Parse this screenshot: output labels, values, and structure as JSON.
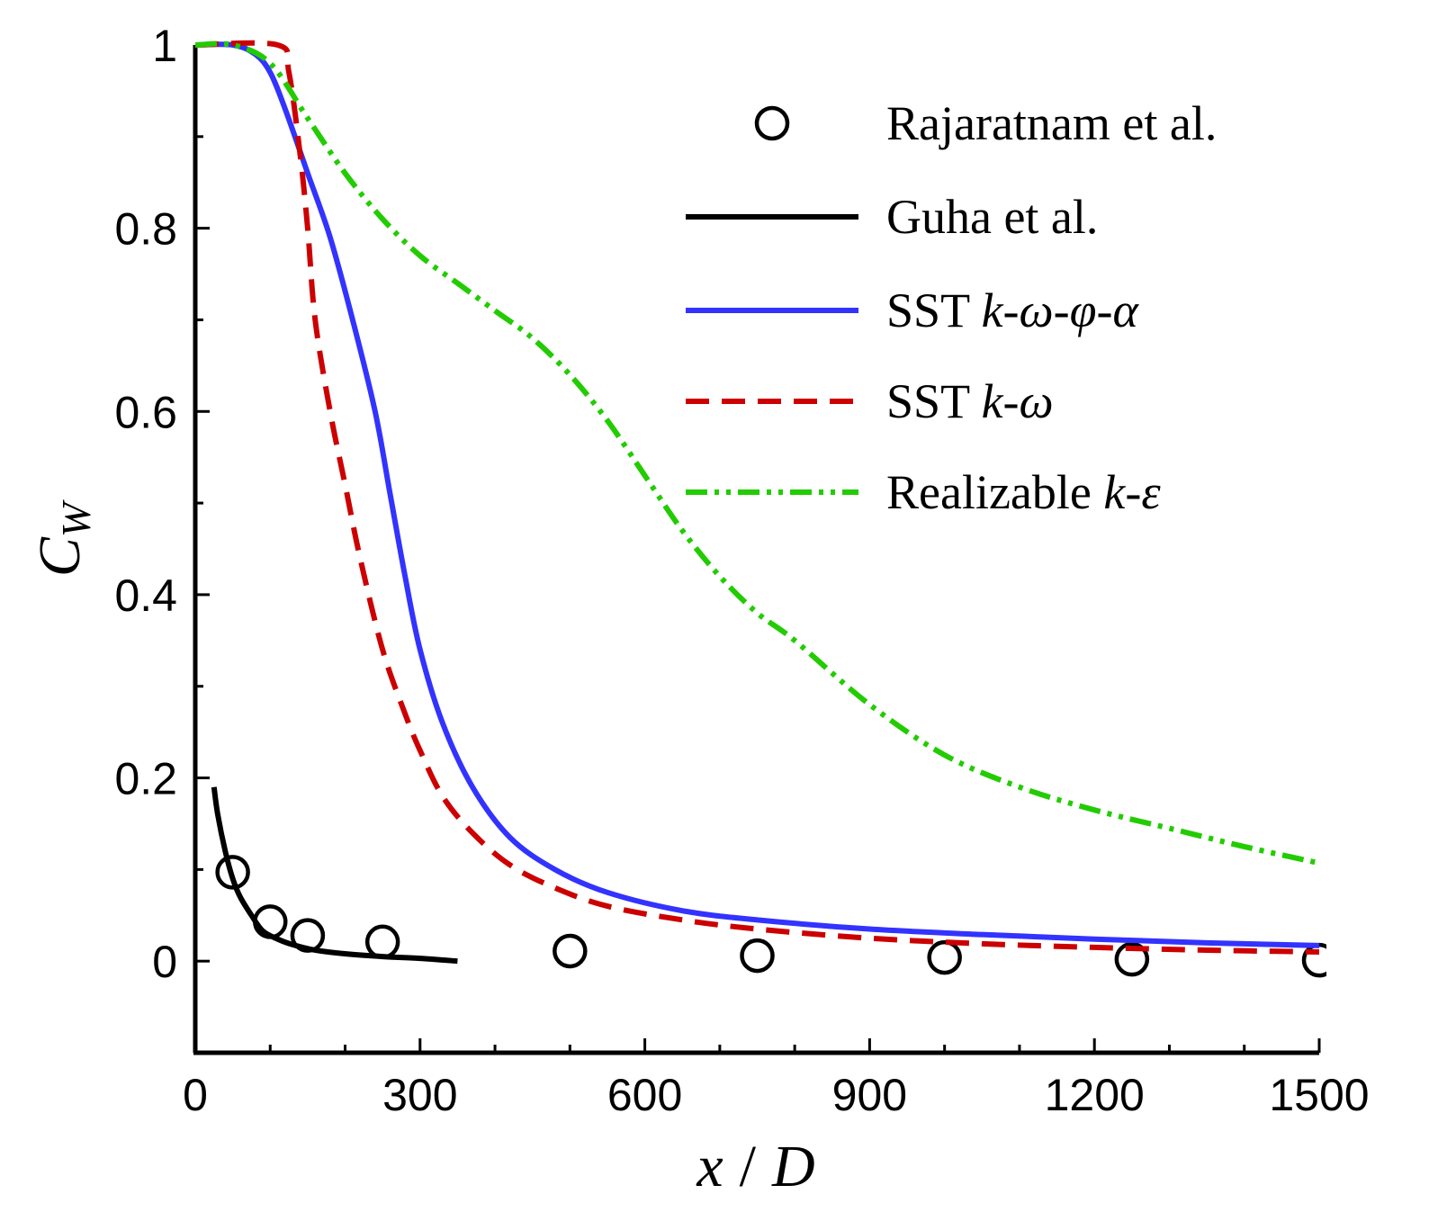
{
  "chart_data": {
    "type": "line",
    "title": "",
    "xlabel": {
      "var": "x",
      "sep": "/",
      "denom": "D"
    },
    "ylabel": {
      "main": "C",
      "sub": "W"
    },
    "xlim": [
      0,
      1500
    ],
    "ylim": [
      -0.1,
      1.0
    ],
    "xticks": [
      "0",
      "300",
      "600",
      "900",
      "1200",
      "1500"
    ],
    "xtick_values": [
      0,
      300,
      600,
      900,
      1200,
      1500
    ],
    "yticks": [
      "0",
      "0.2",
      "0.4",
      "0.6",
      "0.8",
      "1"
    ],
    "ytick_values": [
      0,
      0.2,
      0.4,
      0.6,
      0.8,
      1.0
    ],
    "legend_position": "top-right",
    "series": [
      {
        "name": "Rajaratnam et al.",
        "kind": "markers",
        "color": "#000000",
        "x": [
          50,
          100,
          150,
          250,
          500,
          750,
          1000,
          1250,
          1500
        ],
        "y": [
          0.097,
          0.043,
          0.028,
          0.021,
          0.011,
          0.006,
          0.004,
          0.002,
          0.001
        ]
      },
      {
        "name": "Guha et al.",
        "kind": "solid",
        "color": "#000000",
        "x": [
          25,
          30,
          40,
          50,
          60,
          75,
          90,
          110,
          130,
          160,
          200,
          250,
          300,
          350
        ],
        "y": [
          0.19,
          0.16,
          0.12,
          0.09,
          0.07,
          0.05,
          0.033,
          0.024,
          0.018,
          0.012,
          0.008,
          0.005,
          0.003,
          0.0
        ]
      },
      {
        "name": "SST k-ω-φ-α",
        "label_parts": {
          "plain": "SST ",
          "italic": "k-ω-φ-α"
        },
        "kind": "solid",
        "color": "#3333ff",
        "x": [
          0,
          50,
          80,
          100,
          120,
          150,
          180,
          210,
          240,
          260,
          280,
          300,
          330,
          370,
          420,
          480,
          550,
          650,
          750,
          900,
          1050,
          1200,
          1350,
          1500
        ],
        "y": [
          1.0,
          1.0,
          0.99,
          0.97,
          0.93,
          0.86,
          0.79,
          0.7,
          0.6,
          0.51,
          0.42,
          0.34,
          0.26,
          0.19,
          0.135,
          0.1,
          0.075,
          0.055,
          0.045,
          0.035,
          0.029,
          0.024,
          0.02,
          0.017
        ]
      },
      {
        "name": "SST k-ω",
        "label_parts": {
          "plain": "SST ",
          "italic": "k-ω"
        },
        "kind": "dashed",
        "color": "#cc0000",
        "x": [
          0,
          110,
          125,
          140,
          150,
          160,
          180,
          200,
          220,
          250,
          280,
          300,
          330,
          370,
          420,
          480,
          550,
          650,
          750,
          900,
          1050,
          1200,
          1350,
          1500
        ],
        "y": [
          1.0,
          1.0,
          0.97,
          0.88,
          0.8,
          0.7,
          0.6,
          0.52,
          0.44,
          0.34,
          0.27,
          0.23,
          0.18,
          0.14,
          0.105,
          0.08,
          0.06,
          0.045,
          0.035,
          0.025,
          0.019,
          0.015,
          0.012,
          0.01
        ]
      },
      {
        "name": "Realizable k-ε",
        "label_parts": {
          "plain": "Realizable  ",
          "italic": "k-ε"
        },
        "kind": "dashdotdot",
        "color": "#22cc00",
        "x": [
          0,
          50,
          100,
          150,
          200,
          250,
          300,
          350,
          400,
          450,
          500,
          550,
          600,
          650,
          700,
          750,
          800,
          900,
          1000,
          1100,
          1200,
          1300,
          1400,
          1500
        ],
        "y": [
          1.0,
          1.0,
          0.98,
          0.92,
          0.86,
          0.81,
          0.77,
          0.74,
          0.71,
          0.68,
          0.64,
          0.59,
          0.53,
          0.47,
          0.42,
          0.38,
          0.35,
          0.28,
          0.225,
          0.19,
          0.165,
          0.145,
          0.125,
          0.107
        ]
      }
    ]
  }
}
